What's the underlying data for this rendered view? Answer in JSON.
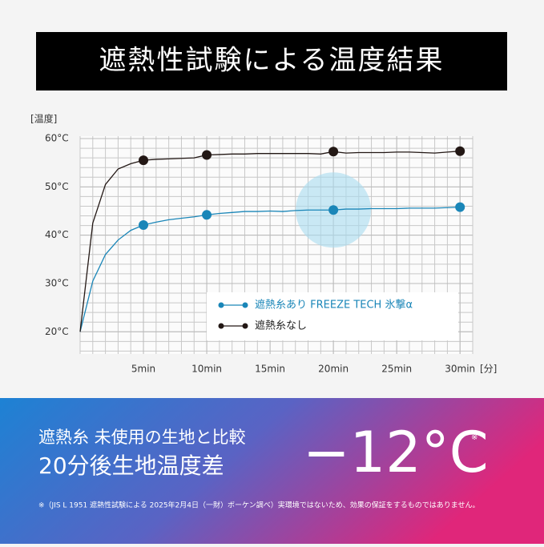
{
  "header": {
    "title": "遮熱性試験による温度結果"
  },
  "chart_data": {
    "type": "line",
    "y_label": "[温度]",
    "x_label": "[分]",
    "x": [
      0,
      1,
      2,
      3,
      4,
      5,
      6,
      7,
      8,
      9,
      10,
      11,
      12,
      13,
      14,
      15,
      16,
      17,
      18,
      19,
      20,
      21,
      22,
      23,
      24,
      25,
      26,
      27,
      28,
      29,
      30
    ],
    "series": [
      {
        "name": "遮熱糸あり  FREEZE TECH 氷撃α",
        "color": "#1a86b8",
        "values": [
          20,
          30.5,
          36,
          39,
          41,
          42.1,
          42.7,
          43.2,
          43.5,
          43.8,
          44.2,
          44.5,
          44.7,
          44.9,
          44.9,
          45.0,
          44.9,
          45.1,
          45.2,
          45.2,
          45.2,
          45.4,
          45.4,
          45.5,
          45.5,
          45.5,
          45.6,
          45.6,
          45.6,
          45.7,
          45.8
        ]
      },
      {
        "name": "遮熱糸なし",
        "color": "#231815",
        "values": [
          20,
          42.5,
          50.5,
          53.7,
          54.8,
          55.5,
          55.7,
          55.8,
          55.9,
          56.0,
          56.6,
          56.7,
          56.8,
          56.8,
          56.9,
          56.9,
          56.9,
          56.9,
          56.9,
          56.8,
          57.3,
          57.0,
          57.1,
          57.1,
          57.1,
          57.2,
          57.2,
          57.1,
          57.0,
          57.2,
          57.4
        ]
      }
    ],
    "marker_x": [
      5,
      10,
      20,
      30
    ],
    "xlim": [
      0,
      31
    ],
    "ylim": [
      15.4,
      60.5
    ],
    "xticks": [
      {
        "value": 5,
        "label": "5min"
      },
      {
        "value": 10,
        "label": "10min"
      },
      {
        "value": 15,
        "label": "15min"
      },
      {
        "value": 20,
        "label": "20min"
      },
      {
        "value": 25,
        "label": "25min"
      },
      {
        "value": 30,
        "label": "30min"
      }
    ],
    "yticks": [
      {
        "value": 20,
        "label": "20°C"
      },
      {
        "value": 30,
        "label": "30°C"
      },
      {
        "value": 40,
        "label": "40°C"
      },
      {
        "value": 50,
        "label": "50°C"
      },
      {
        "value": 60,
        "label": "60°C"
      }
    ],
    "grid": true,
    "grid_step_x": 1,
    "grid_step_y": 2,
    "legend": "lower right"
  },
  "summary": {
    "line1": "遮熱糸 未使用の生地と比較",
    "line2": "20分後生地温度差",
    "difference": "−12°C",
    "note_mark": "※"
  },
  "footnote": "※（JIS L 1951  遮熱性試験による  2025年2月4日（一財）ボーケン調べ）実環境ではないため、効果の保証をするものではありません。"
}
